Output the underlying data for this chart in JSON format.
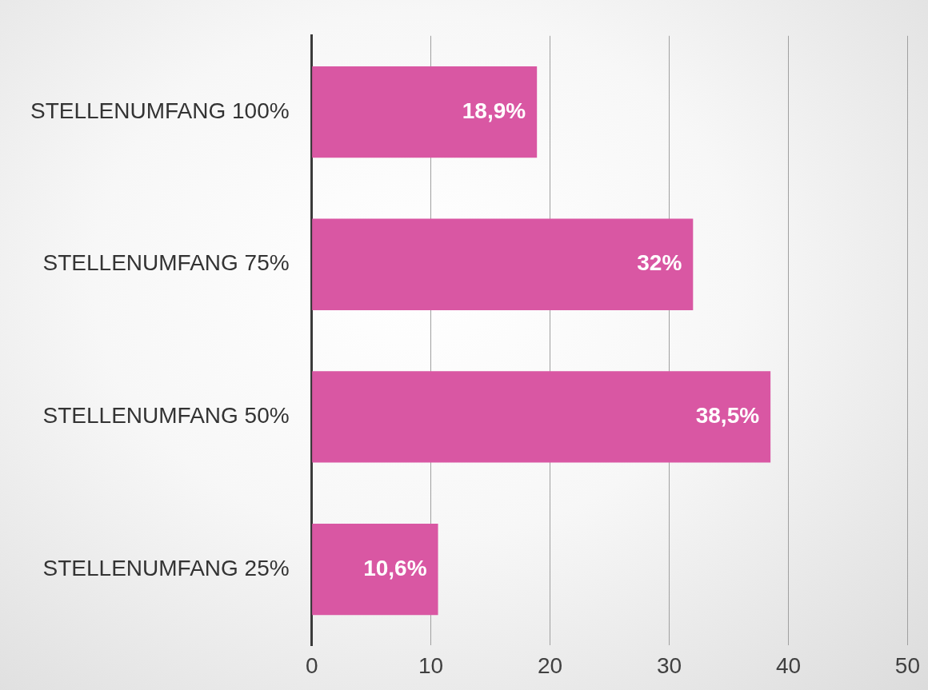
{
  "chart_data": {
    "type": "bar",
    "orientation": "horizontal",
    "categories": [
      "STELLENUMFANG 100%",
      "STELLENUMFANG 75%",
      "STELLENUMFANG 50%",
      "STELLENUMFANG 25%"
    ],
    "values": [
      18.9,
      32,
      38.5,
      10.6
    ],
    "value_labels": [
      "18,9%",
      "32%",
      "38,5%",
      "10,6%"
    ],
    "color": "#d957a3",
    "xlim": [
      0,
      50
    ],
    "xticks": [
      0,
      10,
      20,
      30,
      40,
      50
    ],
    "grid": "x",
    "legend": false
  }
}
